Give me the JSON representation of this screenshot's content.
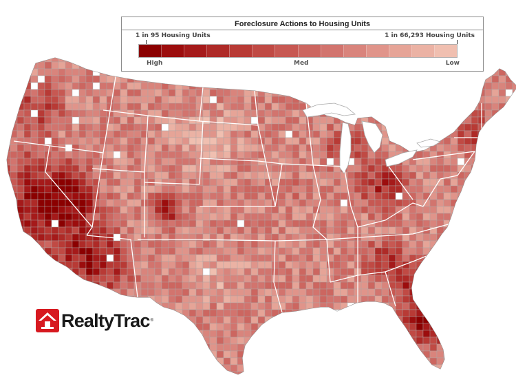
{
  "legend": {
    "title": "Foreclosure Actions to Housing Units",
    "end_left": "1 in 95 Housing Units",
    "end_right": "1 in 66,293 Housing Units",
    "scale_high": "High",
    "scale_med": "Med",
    "scale_low": "Low",
    "ramp_colors": [
      "#8b0000",
      "#9c0d0d",
      "#a51a1a",
      "#ae2a27",
      "#b83a35",
      "#c04a44",
      "#c75852",
      "#cc6660",
      "#d2746e",
      "#d9847c",
      "#e0948a",
      "#e6a497",
      "#ebb2a4",
      "#f0bfb0"
    ]
  },
  "map": {
    "border_color": "#a8a8a8",
    "state_border_color": "#ffffff",
    "blank_color": "#ffffff"
  },
  "logo": {
    "brand": "RealtyTrac",
    "registered": "®",
    "brand_red": "#d71920"
  }
}
